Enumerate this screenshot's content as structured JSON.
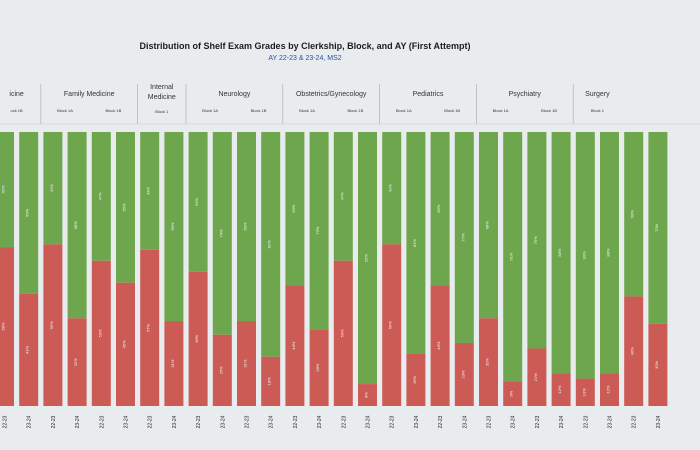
{
  "chart_data": {
    "type": "bar",
    "stacked": true,
    "orientation": "vertical",
    "title": "Distribution of Shelf Exam Grades by Clerkship, Block, and AY (First Attempt)",
    "subtitle": "AY 22-23 & 23-24, MS2",
    "ylim": [
      0,
      100
    ],
    "grid": false,
    "colors": {
      "lower": "#cc5a55",
      "upper": "#6ea64d",
      "background": "#e9ecef"
    },
    "clerkships": [
      {
        "label": "icine",
        "blocks": [
          "ock 1B"
        ]
      },
      {
        "label": "Family Medicine",
        "blocks": [
          "Block 1A",
          "Block 1B"
        ]
      },
      {
        "label": "Internal Medicine",
        "blocks": [
          "Block 1"
        ]
      },
      {
        "label": "Neurology",
        "blocks": [
          "Block 1A",
          "Block 1B"
        ]
      },
      {
        "label": "Obstetrics/Gynecology",
        "blocks": [
          "Block 1A",
          "Block 1B"
        ]
      },
      {
        "label": "Pediatrics",
        "blocks": [
          "Block 1A",
          "Block 1B"
        ]
      },
      {
        "label": "Psychiatry",
        "blocks": [
          "Block 1A",
          "Block 1B"
        ]
      },
      {
        "label": "Surgery",
        "blocks": [
          "Block 1"
        ]
      }
    ],
    "categories": [
      "22-23",
      "23-24",
      "22-23",
      "23-24",
      "22-23",
      "23-24",
      "22-23",
      "23-24",
      "22-23",
      "23-24",
      "22-23",
      "23-24",
      "22-23",
      "23-24",
      "22-23",
      "23-24",
      "22-23",
      "23-24",
      "22-23",
      "23-24",
      "22-23",
      "23-24",
      "22-23",
      "23-24",
      "22-23",
      "23-24",
      "22-23",
      "23-24"
    ],
    "series": [
      {
        "key": "lower",
        "values": [
          58,
          41,
          59,
          32,
          53,
          45,
          57,
          31,
          49,
          26,
          31,
          18,
          44,
          28,
          53,
          8,
          59,
          19,
          44,
          23,
          32,
          9,
          21,
          12,
          10,
          12,
          40,
          30
        ]
      },
      {
        "key": "upper",
        "values": [
          42,
          59,
          41,
          68,
          47,
          55,
          43,
          69,
          51,
          74,
          69,
          82,
          56,
          72,
          47,
          92,
          41,
          81,
          56,
          77,
          68,
          91,
          79,
          88,
          90,
          88,
          60,
          70
        ]
      }
    ]
  }
}
